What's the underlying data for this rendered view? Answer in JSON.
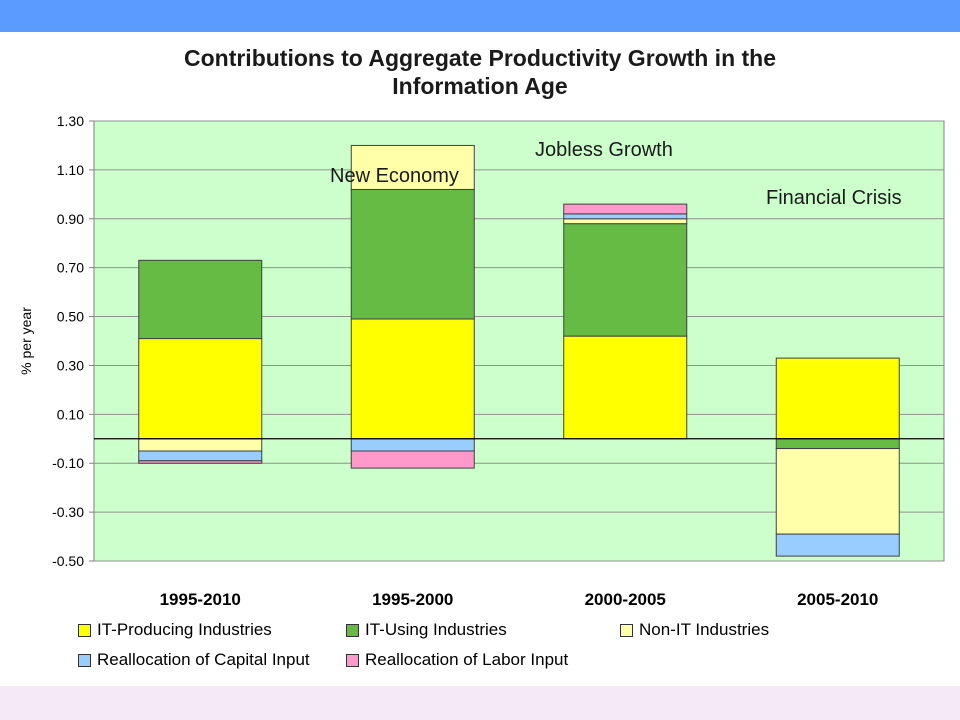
{
  "title_lines": [
    "Contributions to Aggregate Productivity Growth in the",
    "Information Age"
  ],
  "chart_data": {
    "type": "bar",
    "stacked": true,
    "title": "Contributions to Aggregate Productivity Growth in the Information Age",
    "xlabel": "",
    "ylabel": "% per year",
    "ylim": [
      -0.5,
      1.3
    ],
    "yticks": [
      "1.30",
      "1.10",
      "0.90",
      "0.70",
      "0.50",
      "0.30",
      "0.10",
      "-0.10",
      "-0.30",
      "-0.50"
    ],
    "ytick_values": [
      1.3,
      1.1,
      0.9,
      0.7,
      0.5,
      0.3,
      0.1,
      -0.1,
      -0.3,
      -0.5
    ],
    "categories": [
      "1995-2010",
      "1995-2000",
      "2000-2005",
      "2005-2010"
    ],
    "series": [
      {
        "name": "IT-Producing Industries",
        "color": "#ffff00",
        "values": [
          0.41,
          0.49,
          0.42,
          0.33
        ]
      },
      {
        "name": "IT-Using Industries",
        "color": "#66bb44",
        "values": [
          0.32,
          0.53,
          0.46,
          -0.04
        ]
      },
      {
        "name": "Non-IT Industries",
        "color": "#ffffaa",
        "values": [
          -0.05,
          0.18,
          0.02,
          -0.35
        ]
      },
      {
        "name": "Reallocation of Capital Input",
        "color": "#99ccff",
        "values": [
          -0.04,
          -0.05,
          0.02,
          -0.09
        ]
      },
      {
        "name": "Reallocation of Labor Input",
        "color": "#ff99cc",
        "values": [
          -0.01,
          -0.07,
          0.04,
          0.0
        ]
      }
    ],
    "annotations": [
      "New Economy",
      "Jobless Growth",
      "Financial Crisis"
    ],
    "grid": true,
    "legend_position": "bottom",
    "plot_background": "#ccffcc"
  }
}
